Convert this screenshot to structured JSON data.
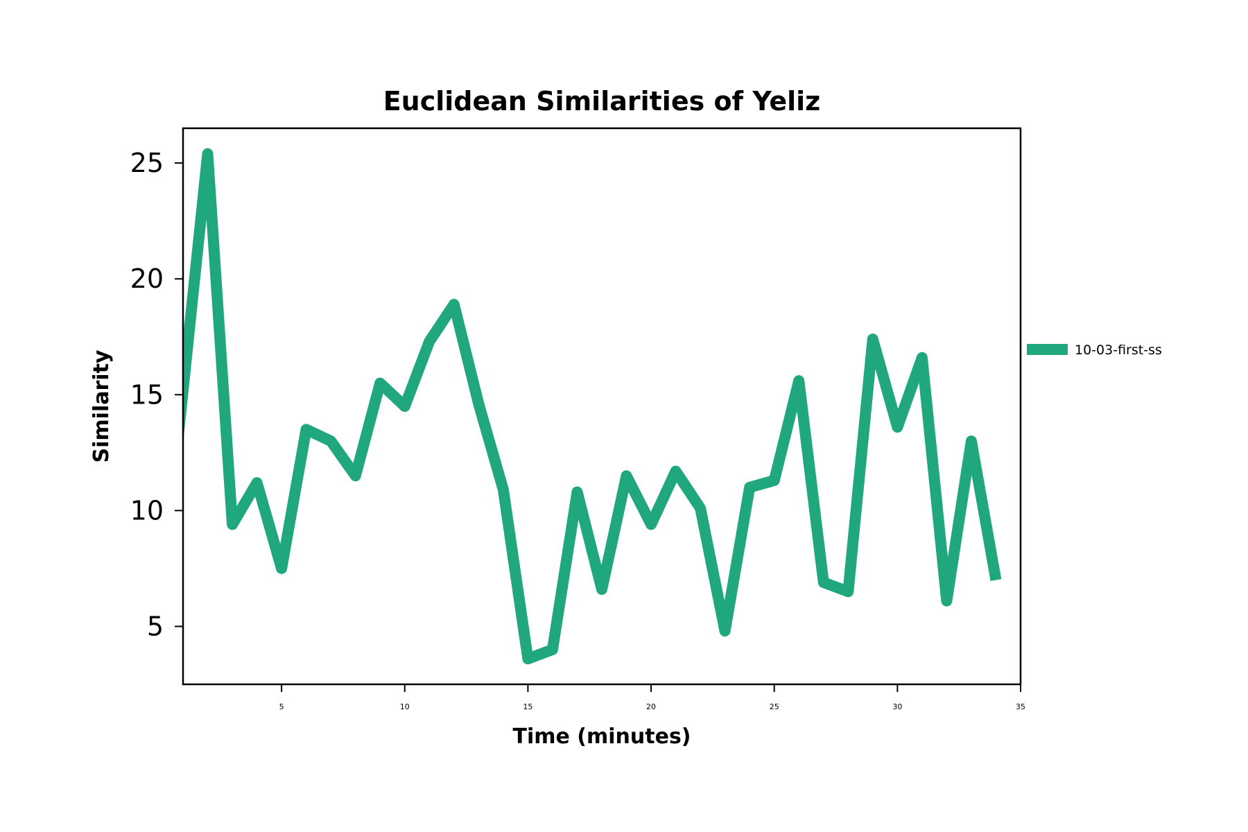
{
  "chart_data": {
    "type": "line",
    "title": "Euclidean Similarities of Yeliz",
    "xlabel": "Time (minutes)",
    "ylabel": "Similarity",
    "xlim": [
      1,
      35
    ],
    "ylim": [
      2.5,
      26.5
    ],
    "xticks": [
      5,
      10,
      15,
      20,
      25,
      30,
      35
    ],
    "yticks": [
      5,
      10,
      15,
      20,
      25
    ],
    "grid": false,
    "legend": "right",
    "series": [
      {
        "name": "10-03-first-ss",
        "color": "#21a77d",
        "x": [
          0,
          1,
          2,
          3,
          4,
          5,
          6,
          7,
          8,
          9,
          10,
          11,
          12,
          13,
          14,
          15,
          16,
          17,
          18,
          19,
          20,
          21,
          22,
          23,
          24,
          25,
          26,
          27,
          28,
          29,
          30,
          31,
          32,
          33,
          34
        ],
        "values": [
          5.0,
          15.2,
          25.4,
          9.4,
          11.2,
          7.5,
          13.5,
          13.0,
          11.5,
          15.5,
          14.5,
          17.3,
          18.9,
          14.6,
          10.9,
          3.6,
          4.0,
          10.8,
          6.6,
          11.5,
          9.4,
          11.7,
          10.1,
          4.8,
          11.0,
          11.3,
          15.6,
          6.9,
          6.5,
          17.4,
          13.6,
          16.6,
          6.1,
          13.0,
          7.0
        ]
      }
    ]
  }
}
